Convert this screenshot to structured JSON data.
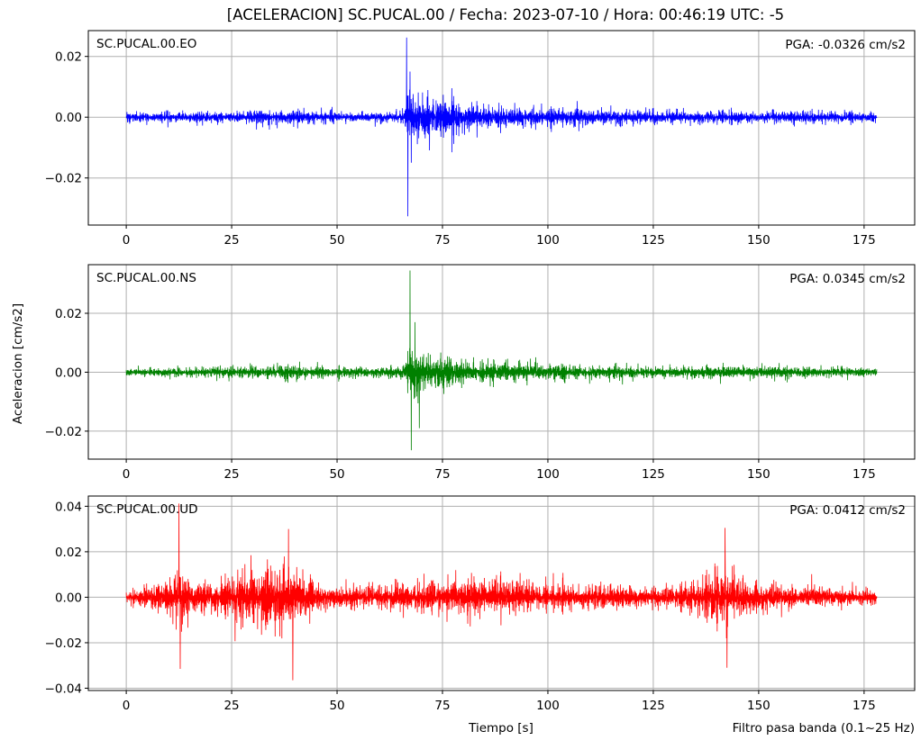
{
  "title": "[ACELERACION] SC.PUCAL.00 / Fecha: 2023-07-10 / Hora: 00:46:19 UTC: -5",
  "xlabel": "Tiempo [s]",
  "ylabel": "Aceleracion [cm/s2]",
  "footnote": "Filtro pasa banda (0.1~25 Hz)",
  "chart_data": [
    {
      "type": "line",
      "channel": "SC.PUCAL.00.EO",
      "pga_label": "PGA: -0.0326 cm/s2",
      "color": "#0000ff",
      "xlim": [
        -9,
        187
      ],
      "ylim": [
        -0.0355,
        0.0285
      ],
      "x_ticks": [
        0,
        25,
        50,
        75,
        100,
        125,
        150,
        175
      ],
      "y_ticks": [
        -0.02,
        0.0,
        0.02
      ],
      "y_tick_labels": [
        "−0.02",
        "0.00",
        "0.02"
      ],
      "grid": true,
      "envelope": {
        "t": [
          0,
          10,
          20,
          30,
          38,
          45,
          55,
          60,
          66,
          66.7,
          67.5,
          70,
          75,
          80,
          90,
          100,
          110,
          120,
          130,
          140,
          150,
          160,
          170,
          178
        ],
        "amp": [
          0.0022,
          0.0026,
          0.0027,
          0.003,
          0.0038,
          0.0029,
          0.0026,
          0.0027,
          0.0033,
          0.011,
          0.0125,
          0.0105,
          0.009,
          0.007,
          0.0052,
          0.0045,
          0.004,
          0.0035,
          0.0033,
          0.0034,
          0.0031,
          0.0029,
          0.0028,
          0.0022
        ]
      },
      "peaks": [
        {
          "t": 66.5,
          "a": 0.0262
        },
        {
          "t": 66.8,
          "a": -0.0326
        },
        {
          "t": 67.3,
          "a": 0.015
        },
        {
          "t": 67.6,
          "a": -0.015
        }
      ],
      "x_range": [
        0,
        178
      ]
    },
    {
      "type": "line",
      "channel": "SC.PUCAL.00.NS",
      "pga_label": "PGA: 0.0345 cm/s2",
      "color": "#008000",
      "xlim": [
        -9,
        187
      ],
      "ylim": [
        -0.0295,
        0.0365
      ],
      "x_ticks": [
        0,
        25,
        50,
        75,
        100,
        125,
        150,
        175
      ],
      "y_ticks": [
        -0.02,
        0.0,
        0.02
      ],
      "y_tick_labels": [
        "−0.02",
        "0.00",
        "0.02"
      ],
      "grid": true,
      "envelope": {
        "t": [
          0,
          10,
          20,
          30,
          40,
          45,
          55,
          60,
          66,
          67.2,
          68,
          70,
          75,
          80,
          90,
          100,
          110,
          120,
          130,
          140,
          150,
          160,
          170,
          178
        ],
        "amp": [
          0.002,
          0.0024,
          0.0025,
          0.003,
          0.0035,
          0.0027,
          0.0025,
          0.0028,
          0.0035,
          0.011,
          0.012,
          0.0105,
          0.0085,
          0.0065,
          0.005,
          0.0042,
          0.0036,
          0.0032,
          0.003,
          0.0033,
          0.003,
          0.0028,
          0.0027,
          0.002
        ]
      },
      "peaks": [
        {
          "t": 67.3,
          "a": 0.0345
        },
        {
          "t": 67.6,
          "a": -0.0265
        },
        {
          "t": 68.5,
          "a": 0.017
        },
        {
          "t": 69.5,
          "a": -0.019
        }
      ],
      "x_range": [
        0,
        178
      ]
    },
    {
      "type": "line",
      "channel": "SC.PUCAL.00.UD",
      "pga_label": "PGA: 0.0412 cm/s2",
      "color": "#ff0000",
      "xlim": [
        -9,
        187
      ],
      "ylim": [
        -0.041,
        0.0445
      ],
      "x_ticks": [
        0,
        25,
        50,
        75,
        100,
        125,
        150,
        175
      ],
      "x_tick_labels_shown": true,
      "y_ticks": [
        -0.04,
        -0.02,
        0.0,
        0.02,
        0.04
      ],
      "y_tick_labels": [
        "−0.04",
        "−0.02",
        "0.00",
        "0.02",
        "0.04"
      ],
      "grid": true,
      "envelope": {
        "t": [
          0,
          5,
          10,
          12,
          15,
          20,
          25,
          30,
          35,
          38,
          40,
          43,
          50,
          55,
          60,
          65,
          70,
          75,
          80,
          85,
          90,
          95,
          100,
          105,
          110,
          115,
          120,
          125,
          130,
          135,
          140,
          142,
          145,
          150,
          155,
          160,
          165,
          170,
          178
        ],
        "amp": [
          0.005,
          0.007,
          0.012,
          0.017,
          0.011,
          0.009,
          0.016,
          0.019,
          0.02,
          0.022,
          0.018,
          0.012,
          0.008,
          0.0075,
          0.008,
          0.009,
          0.011,
          0.012,
          0.013,
          0.012,
          0.011,
          0.01,
          0.009,
          0.008,
          0.0075,
          0.007,
          0.0072,
          0.0075,
          0.008,
          0.01,
          0.017,
          0.019,
          0.014,
          0.009,
          0.0075,
          0.007,
          0.0065,
          0.006,
          0.0045
        ]
      },
      "peaks": [
        {
          "t": 12.5,
          "a": 0.0412
        },
        {
          "t": 12.8,
          "a": -0.0315
        },
        {
          "t": 39.5,
          "a": -0.0365
        },
        {
          "t": 38.5,
          "a": 0.03
        },
        {
          "t": 142,
          "a": 0.0305
        },
        {
          "t": 142.5,
          "a": -0.031
        }
      ],
      "x_range": [
        0,
        178
      ]
    }
  ]
}
